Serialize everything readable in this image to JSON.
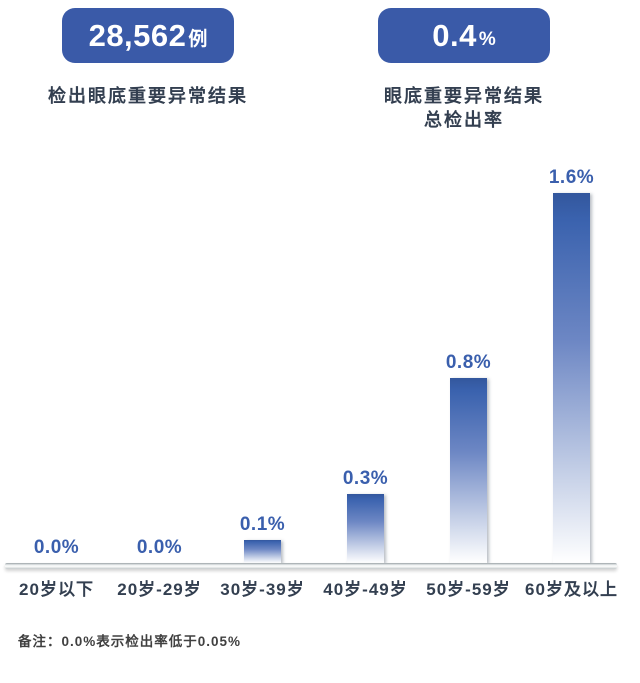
{
  "stats": [
    {
      "value": "28,562",
      "unit": "例",
      "caption_lines": [
        "检出眼底重要异常结果"
      ]
    },
    {
      "value": "0.4",
      "unit": "%",
      "caption_lines": [
        "眼底重要异常结果",
        "总检出率"
      ]
    }
  ],
  "chart_data": {
    "type": "bar",
    "categories": [
      "20岁以下",
      "20岁-29岁",
      "30岁-39岁",
      "40岁-49岁",
      "50岁-59岁",
      "60岁及以上"
    ],
    "values": [
      0.0,
      0.0,
      0.1,
      0.3,
      0.8,
      1.6
    ],
    "labels": [
      "0.0%",
      "0.0%",
      "0.1%",
      "0.3%",
      "0.8%",
      "1.6%"
    ],
    "title": "",
    "xlabel": "",
    "ylabel": "检出率",
    "ylim": [
      0,
      1.6
    ],
    "grid": false,
    "legend": "none",
    "bar_gradient_top": "#3A62AE",
    "bar_gradient_bottom": "#FFFFFF",
    "value_label_color": "#3A5FAD"
  },
  "note": "备注：0.0%表示检出率低于0.05%",
  "colors": {
    "stat_box_bg": "#3A5AA8",
    "stat_text": "#FFFFFF",
    "caption": "#333F50",
    "axis_label": "#333F50",
    "note": "#404040",
    "background": "#FFFFFF"
  }
}
